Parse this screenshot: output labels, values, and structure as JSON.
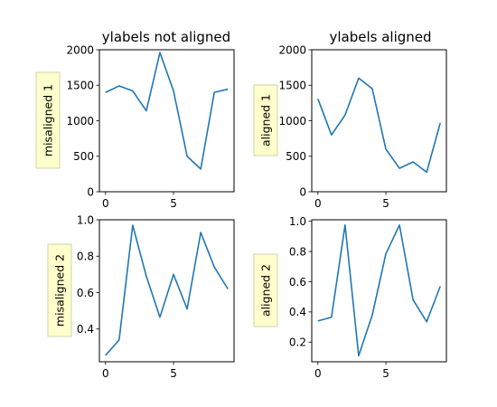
{
  "colors": {
    "series": "#1f77b4",
    "label_box": "#ffffcc"
  },
  "chart_data": [
    {
      "type": "line",
      "title": "ylabels not aligned",
      "ylabel": "misaligned 1",
      "x": [
        0,
        1,
        2,
        3,
        4,
        5,
        6,
        7,
        8,
        9
      ],
      "series": [
        {
          "values": [
            1400,
            1490,
            1420,
            1140,
            1960,
            1420,
            500,
            320,
            1400,
            1445
          ]
        }
      ],
      "xlim": [
        -0.45,
        9.45
      ],
      "ylim": [
        0,
        2000
      ],
      "xticks": [
        0,
        5
      ],
      "yticks": [
        0,
        500,
        1000,
        1500,
        2000
      ],
      "xtick_labels": [
        "0",
        "5"
      ],
      "ytick_labels": [
        "0",
        "500",
        "1000",
        "1500",
        "2000"
      ],
      "grid": false
    },
    {
      "type": "line",
      "title": "ylabels aligned",
      "ylabel": "aligned 1",
      "x": [
        0,
        1,
        2,
        3,
        4,
        5,
        6,
        7,
        8,
        9
      ],
      "series": [
        {
          "values": [
            1310,
            800,
            1080,
            1600,
            1450,
            600,
            330,
            420,
            275,
            970
          ]
        }
      ],
      "xlim": [
        -0.45,
        9.45
      ],
      "ylim": [
        0,
        2000
      ],
      "xticks": [
        0,
        5
      ],
      "yticks": [
        0,
        500,
        1000,
        1500,
        2000
      ],
      "xtick_labels": [
        "0",
        "5"
      ],
      "ytick_labels": [
        "0",
        "500",
        "1000",
        "1500",
        "2000"
      ],
      "grid": false
    },
    {
      "type": "line",
      "title": "",
      "ylabel": "misaligned 2",
      "x": [
        0,
        1,
        2,
        3,
        4,
        5,
        6,
        7,
        8,
        9
      ],
      "series": [
        {
          "values": [
            0.255,
            0.34,
            0.97,
            0.69,
            0.465,
            0.7,
            0.51,
            0.93,
            0.74,
            0.62
          ]
        }
      ],
      "xlim": [
        -0.45,
        9.45
      ],
      "ylim": [
        0.22,
        1.0
      ],
      "xticks": [
        0,
        5
      ],
      "yticks": [
        0.4,
        0.6,
        0.8,
        1.0
      ],
      "xtick_labels": [
        "0",
        "5"
      ],
      "ytick_labels": [
        "0.4",
        "0.6",
        "0.8",
        "1.0"
      ],
      "grid": false
    },
    {
      "type": "line",
      "title": "",
      "ylabel": "aligned 2",
      "x": [
        0,
        1,
        2,
        3,
        4,
        5,
        6,
        7,
        8,
        9
      ],
      "series": [
        {
          "values": [
            0.34,
            0.365,
            0.975,
            0.11,
            0.38,
            0.785,
            0.975,
            0.48,
            0.335,
            0.57
          ]
        }
      ],
      "xlim": [
        -0.45,
        9.45
      ],
      "ylim": [
        0.07,
        1.01
      ],
      "xticks": [
        0,
        5
      ],
      "yticks": [
        0.2,
        0.4,
        0.6,
        0.8,
        1.0
      ],
      "xtick_labels": [
        "0",
        "5"
      ],
      "ytick_labels": [
        "0.2",
        "0.4",
        "0.6",
        "0.8",
        "1.0"
      ],
      "grid": false
    }
  ]
}
